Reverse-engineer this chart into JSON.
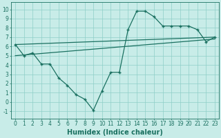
{
  "line1_x": [
    0,
    1,
    2,
    3,
    4,
    5,
    6,
    7,
    8,
    9,
    10,
    11,
    12,
    13,
    14,
    15,
    16,
    17,
    18,
    19,
    20,
    21,
    22,
    23
  ],
  "line1_y": [
    6.2,
    5.0,
    5.3,
    4.1,
    4.1,
    2.6,
    1.8,
    0.8,
    0.3,
    -0.9,
    1.2,
    3.2,
    3.2,
    7.8,
    9.8,
    9.8,
    9.2,
    8.2,
    8.2,
    8.2,
    8.2,
    7.8,
    6.5,
    7.0
  ],
  "line2_x": [
    0,
    23
  ],
  "line2_y": [
    5.0,
    6.8
  ],
  "line3_x": [
    0,
    23
  ],
  "line3_y": [
    6.2,
    7.0
  ],
  "color": "#1a7060",
  "bg_color": "#c8ece8",
  "grid_color": "#8ecec8",
  "xlabel": "Humidex (Indice chaleur)",
  "xlim": [
    -0.5,
    23.5
  ],
  "ylim": [
    -1.8,
    10.8
  ],
  "yticks": [
    -1,
    0,
    1,
    2,
    3,
    4,
    5,
    6,
    7,
    8,
    9,
    10
  ],
  "xticks": [
    0,
    1,
    2,
    3,
    4,
    5,
    6,
    7,
    8,
    9,
    10,
    11,
    12,
    13,
    14,
    15,
    16,
    17,
    18,
    19,
    20,
    21,
    22,
    23
  ],
  "tick_fontsize": 5.5,
  "xlabel_fontsize": 7
}
